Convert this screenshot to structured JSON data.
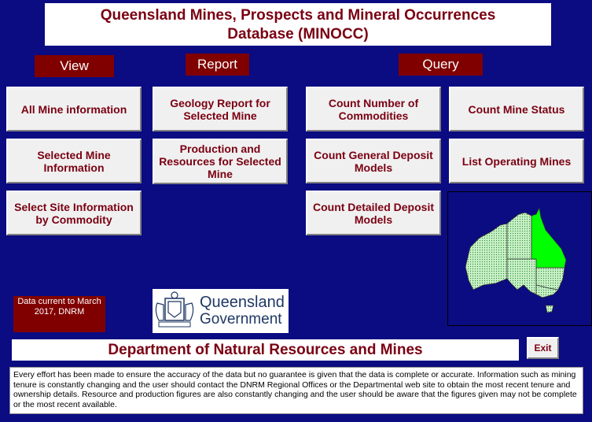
{
  "title": {
    "line1": "Queensland Mines, Prospects and Mineral Occurrences",
    "line2": "Database (MINOCC)"
  },
  "sections": {
    "view": "View",
    "report": "Report",
    "query": "Query"
  },
  "buttons": {
    "all_mine": "All Mine information",
    "selected_mine": "Selected Mine Information",
    "site_by_commodity": "Select Site Information by Commodity",
    "geology_report": "Geology Report for Selected Mine",
    "production": "Production and Resources for Selected Mine",
    "count_commodities": "Count Number of Commodities",
    "count_general": "Count General Deposit Models",
    "count_detailed": "Count Detailed Deposit Models",
    "count_status": "Count Mine Status",
    "list_operating": "List Operating Mines",
    "exit": "Exit"
  },
  "data_current": "Data current to March 2017, DNRM",
  "logo": {
    "line1": "Queensland",
    "line2": "Government"
  },
  "department": "Department of Natural Resources and Mines",
  "disclaimer": "Every effort has been made to ensure the accuracy of the data but no guarantee is given that the data is complete or accurate. Information such as mining tenure is constantly changing and the user should contact the DNRM Regional Offices or the Departmental web site to obtain the most recent tenure and ownership details. Resource and production figures are also constantly changing and the user should be aware that the figures given may not be complete or the most recent available.",
  "colors": {
    "background": "#0b0b82",
    "maroon": "#800000",
    "button_text": "#7a0012",
    "qld_green": "#00ff00",
    "other_states": "#c8f0c8"
  }
}
